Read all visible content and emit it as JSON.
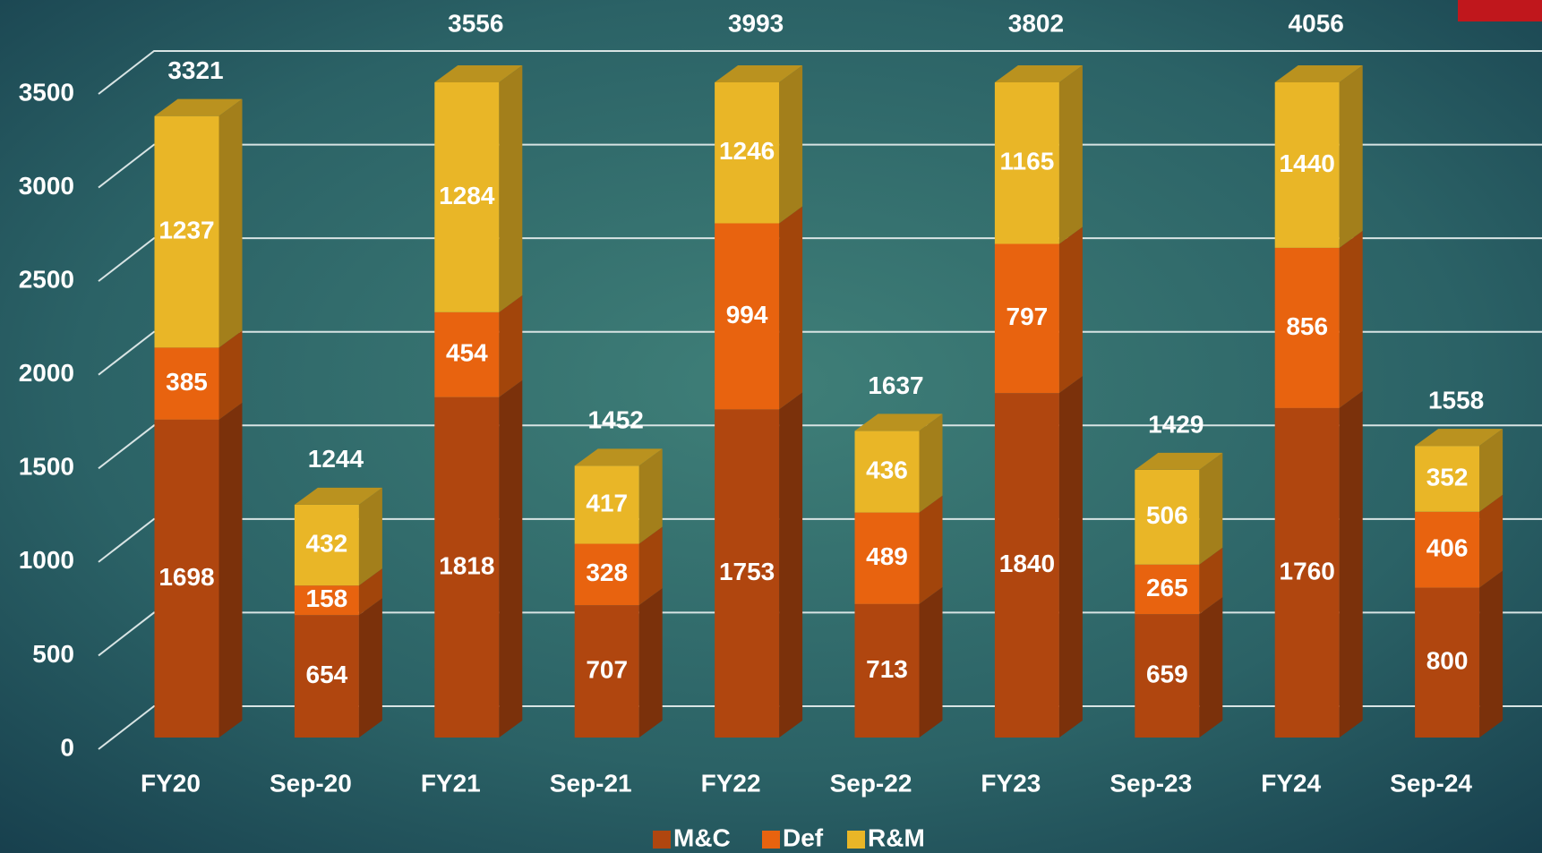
{
  "chart_data": {
    "type": "bar3d_stacked",
    "categories": [
      "FY20",
      "Sep-20",
      "FY21",
      "Sep-21",
      "FY22",
      "Sep-22",
      "FY23",
      "Sep-23",
      "FY24",
      "Sep-24"
    ],
    "series": [
      {
        "name": "M&C",
        "color": "#b0460f",
        "values": [
          1698,
          654,
          1818,
          707,
          1753,
          713,
          1840,
          659,
          1760,
          800
        ]
      },
      {
        "name": "Def",
        "color": "#e8630f",
        "values": [
          385,
          158,
          454,
          328,
          994,
          489,
          797,
          265,
          856,
          406
        ]
      },
      {
        "name": "R&M",
        "color": "#e9b627",
        "values": [
          1237,
          432,
          1284,
          417,
          1246,
          436,
          1165,
          506,
          1440,
          352
        ]
      }
    ],
    "totals": [
      3321,
      1244,
      3556,
      1452,
      3993,
      1637,
      3802,
      1429,
      4056,
      1558
    ],
    "ylim": [
      0,
      3500
    ],
    "yticks": [
      0,
      500,
      1000,
      1500,
      2000,
      2500,
      3000,
      3500
    ],
    "grid": true
  }
}
